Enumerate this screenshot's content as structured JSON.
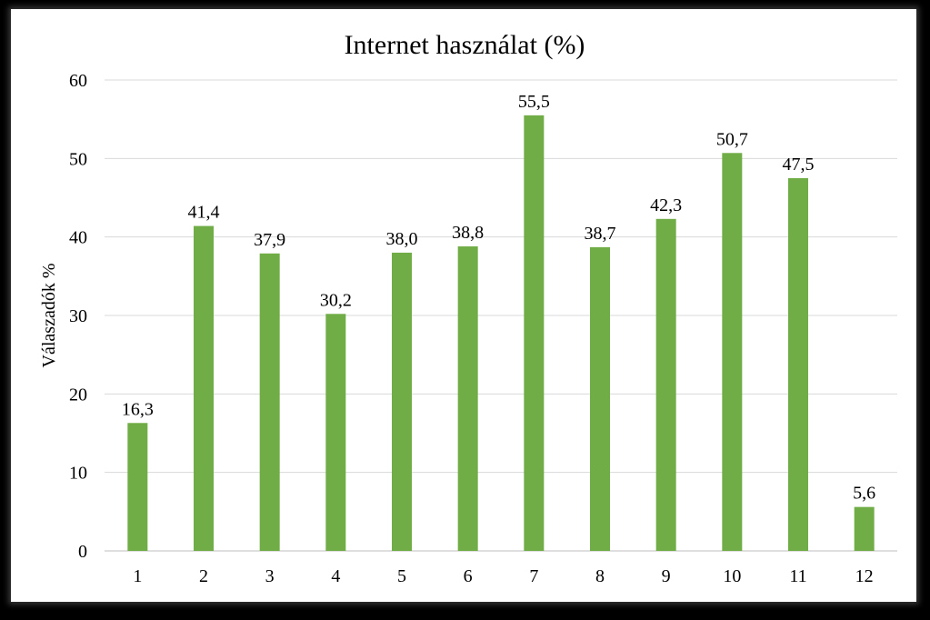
{
  "chart_data": {
    "type": "bar",
    "title": "Internet használat (%)",
    "xlabel": "",
    "ylabel": "Válaszadók %",
    "categories": [
      "1",
      "2",
      "3",
      "4",
      "5",
      "6",
      "7",
      "8",
      "9",
      "10",
      "11",
      "12"
    ],
    "values": [
      16.3,
      41.4,
      37.9,
      30.2,
      38.0,
      38.8,
      55.5,
      38.7,
      42.3,
      50.7,
      47.5,
      5.6
    ],
    "data_labels": [
      "16,3",
      "41,4",
      "37,9",
      "30,2",
      "38,0",
      "38,8",
      "55,5",
      "38,7",
      "42,3",
      "50,7",
      "47,5",
      "5,6"
    ],
    "ylim": [
      0,
      60
    ],
    "yticks": [
      "0",
      "10",
      "20",
      "30",
      "40",
      "50",
      "60"
    ],
    "grid": true,
    "legend": "none",
    "colors": {
      "bar": "#70AD47",
      "grid": "#D9D9D9",
      "axis": "#BFBFBF",
      "frame_border": "#000000"
    }
  }
}
